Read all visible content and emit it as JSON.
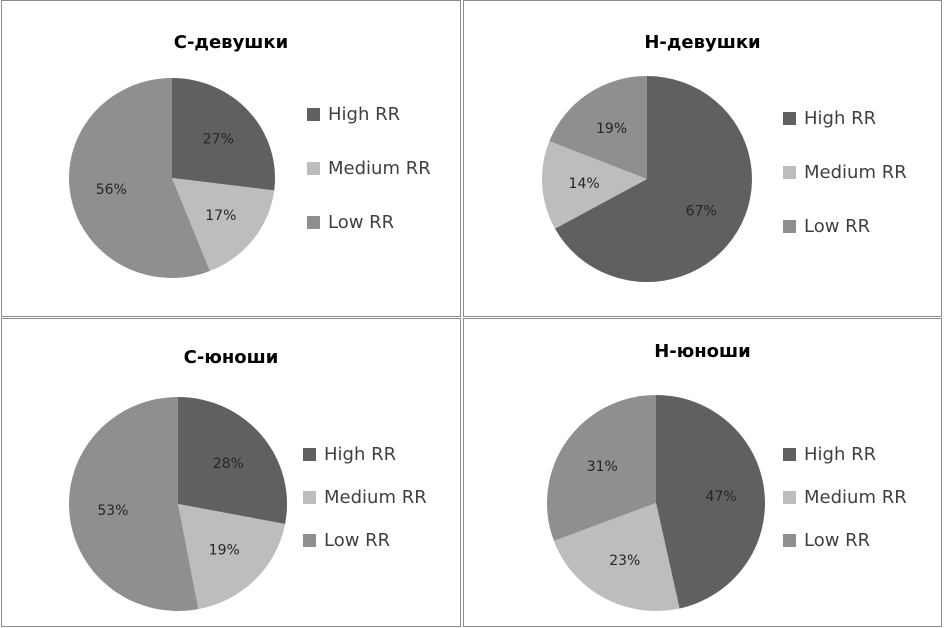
{
  "chart_data": [
    {
      "type": "pie",
      "title": "С-девушки",
      "categories": [
        "High RR",
        "Medium RR",
        "Low RR"
      ],
      "values": [
        27,
        17,
        56
      ],
      "labels": [
        "27%",
        "17%",
        "56%"
      ],
      "colors": [
        "#606060",
        "#bdbdbd",
        "#8f8f8f"
      ]
    },
    {
      "type": "pie",
      "title": "Н-девушки",
      "categories": [
        "High RR",
        "Medium RR",
        "Low RR"
      ],
      "values": [
        67,
        14,
        19
      ],
      "labels": [
        "67%",
        "14%",
        "19%"
      ],
      "colors": [
        "#606060",
        "#bdbdbd",
        "#8f8f8f"
      ]
    },
    {
      "type": "pie",
      "title": "С-юноши",
      "categories": [
        "High RR",
        "Medium RR",
        "Low RR"
      ],
      "values": [
        28,
        19,
        53
      ],
      "labels": [
        "28%",
        "19%",
        "53%"
      ],
      "colors": [
        "#606060",
        "#bdbdbd",
        "#8f8f8f"
      ]
    },
    {
      "type": "pie",
      "title": "Н-юноши",
      "categories": [
        "High RR",
        "Medium RR",
        "Low RR"
      ],
      "values": [
        47,
        23,
        31
      ],
      "labels": [
        "47%",
        "23%",
        "31%"
      ],
      "colors": [
        "#606060",
        "#bdbdbd",
        "#8f8f8f"
      ]
    }
  ]
}
